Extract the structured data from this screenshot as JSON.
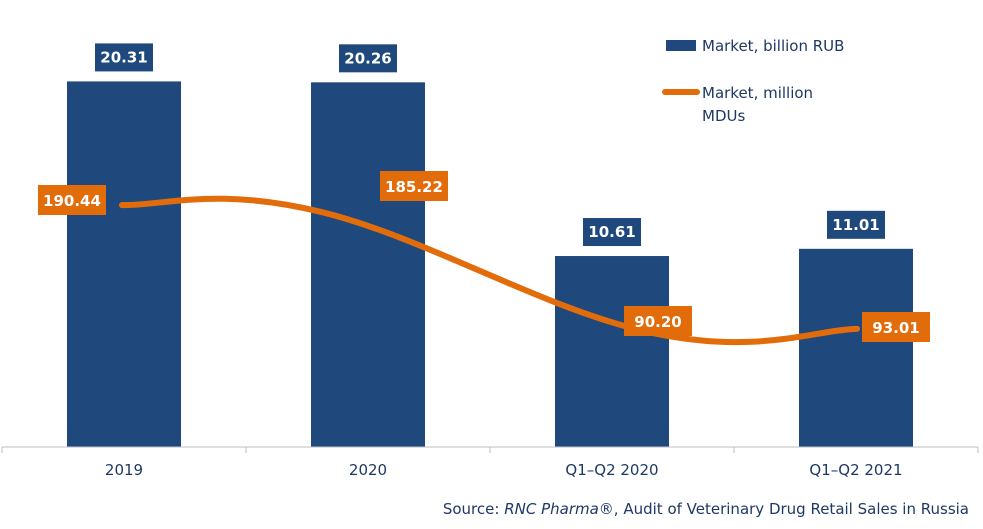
{
  "chart_data": {
    "type": "bar",
    "categories": [
      "2019",
      "2020",
      "Q1–Q2 2020",
      "Q1–Q2 2021"
    ],
    "series": [
      {
        "name": "Market, billion RUB",
        "type": "bar",
        "color": "#1f497d",
        "values": [
          20.31,
          20.26,
          10.61,
          11.01
        ],
        "labels": [
          "20.31",
          "20.26",
          "10.61",
          "11.01"
        ]
      },
      {
        "name": "Market, million MDUs",
        "type": "line",
        "color": "#e36c0a",
        "values": [
          190.44,
          185.22,
          90.2,
          93.01
        ],
        "labels": [
          "190.44",
          "185.22",
          "90.20",
          "93.01"
        ]
      }
    ],
    "bar_axis_range": [
      0,
      24
    ],
    "line_axis_range": [
      0,
      340
    ],
    "legend_position": "top-right",
    "grid": false
  },
  "legend": {
    "bar_label": "Market, billion RUB",
    "line_label_1": "Market, million",
    "line_label_2": "MDUs"
  },
  "source": {
    "prefix": "Source: ",
    "brand": "RNC Pharma®",
    "suffix": ", Audit of Veterinary Drug Retail Sales in Russia"
  }
}
